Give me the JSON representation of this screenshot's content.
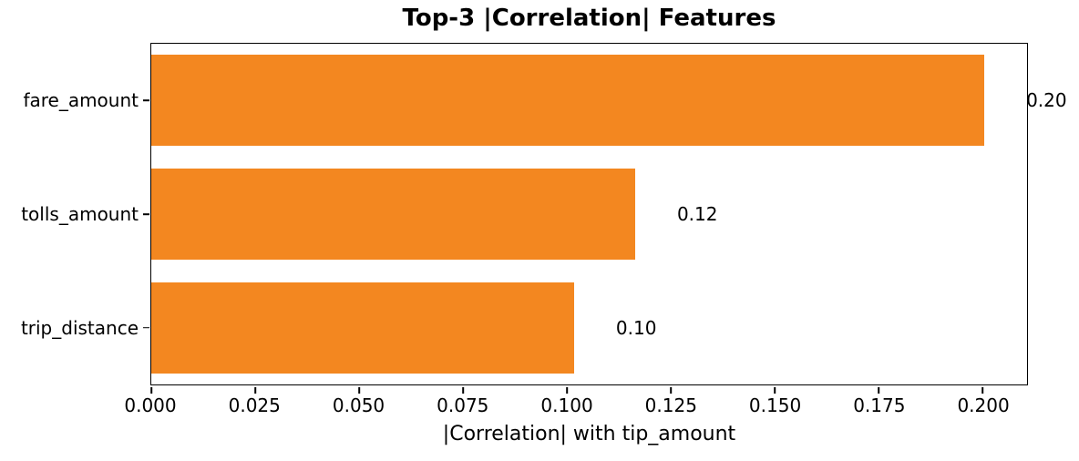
{
  "chart_data": {
    "type": "bar",
    "orientation": "horizontal",
    "title": "Top-3 |Correlation| Features",
    "xlabel": "|Correlation| with tip_amount",
    "ylabel": "",
    "categories": [
      "fare_amount",
      "tolls_amount",
      "trip_distance"
    ],
    "values": [
      0.2005,
      0.1165,
      0.1018
    ],
    "value_labels": [
      "0.20",
      "0.12",
      "0.10"
    ],
    "xlim": [
      0,
      0.2107
    ],
    "xticks": [
      0.0,
      0.025,
      0.05,
      0.075,
      0.1,
      0.125,
      0.15,
      0.175,
      0.2
    ],
    "xtick_labels": [
      "0.000",
      "0.025",
      "0.050",
      "0.075",
      "0.100",
      "0.125",
      "0.150",
      "0.175",
      "0.200"
    ],
    "value_label_offset": 0.01,
    "bar_color": "#f38720",
    "axis_color": "#000000",
    "text_color": "#000000",
    "background_color": "#ffffff",
    "grid": false,
    "legend": null,
    "bar_fraction": 0.8
  }
}
